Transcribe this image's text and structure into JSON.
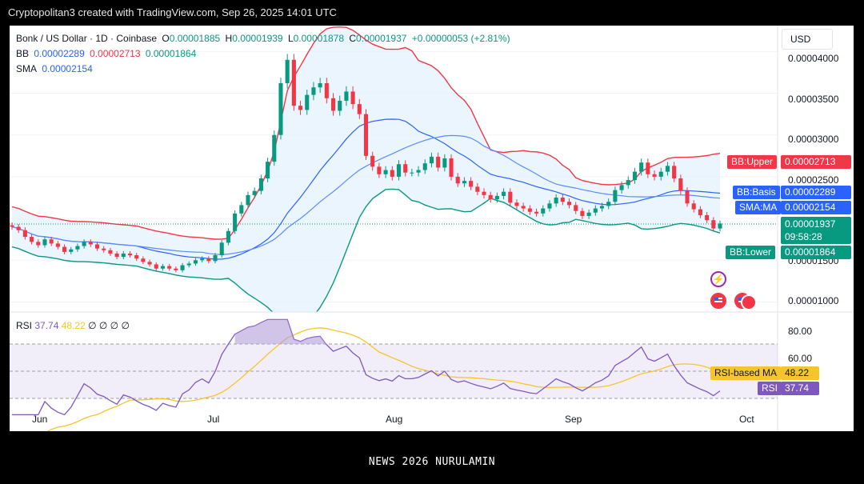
{
  "header": {
    "title": "Cryptopolitan3 created with TradingView.com, Sep 26, 2025 14:01 UTC"
  },
  "legend": {
    "symbol": "Bonk / US Dollar · 1D · Coinbase",
    "o_label": "O",
    "o": "0.00001885",
    "h_label": "H",
    "h": "0.00001939",
    "l_label": "L",
    "l": "0.00001878",
    "c_label": "C",
    "c": "0.00001937",
    "change": "+0.00000053 (+2.81%)",
    "bb_label": "BB",
    "bb_basis": "0.00002289",
    "bb_upper": "0.00002713",
    "bb_lower": "0.00001864",
    "sma_label": "SMA",
    "sma": "0.00002154"
  },
  "currency": "USD",
  "price_axis": {
    "ticks": [
      "0.00004000",
      "0.00003500",
      "0.00003000",
      "0.00002500",
      "0.00001500",
      "0.00001000"
    ]
  },
  "price_tags": {
    "bb_upper_label": "BB:Upper",
    "bb_upper_value": "0.00002713",
    "bb_basis_label": "BB:Basis",
    "bb_basis_value": "0.00002289",
    "sma_label": "SMA:MA",
    "sma_value": "0.00002154",
    "last_value": "0.00001937",
    "countdown": "09:58:28",
    "bb_lower_label": "BB:Lower",
    "bb_lower_value": "0.00001864"
  },
  "rsi": {
    "label": "RSI",
    "value": "37.74",
    "ma_value": "48.22",
    "extra": "∅ ∅ ∅ ∅",
    "ticks": [
      "80.00",
      "60.00"
    ],
    "ma_tag_label": "RSI-based MA",
    "ma_tag_value": "48.22",
    "rsi_tag_label": "RSI",
    "rsi_tag_value": "37.74"
  },
  "time_axis": {
    "labels": [
      "Jun",
      "Jul",
      "Aug",
      "Sep",
      "Oct"
    ]
  },
  "footer": {
    "text": "NEWS 2026 NURULAMIN"
  },
  "colors": {
    "up": "#089981",
    "down": "#f23645",
    "basis": "#2962ff",
    "sma": "#2962ff",
    "rsi": "#7e57c2",
    "rsi_ma": "#f7c52b",
    "band_fill": "#e3f2fd"
  },
  "chart_data": {
    "type": "candlestick",
    "title": "Bonk / US Dollar · 1D · Coinbase",
    "y_axis_range": [
      8.8e-06,
      4.31e-05
    ],
    "x_axis_labels": [
      "Jun",
      "Jul",
      "Aug",
      "Sep",
      "Oct"
    ],
    "close_series": [
      1.9e-05,
      1.86e-05,
      1.78e-05,
      1.72e-05,
      1.68e-05,
      1.75e-05,
      1.7e-05,
      1.66e-05,
      1.6e-05,
      1.63e-05,
      1.67e-05,
      1.72e-05,
      1.69e-05,
      1.64e-05,
      1.62e-05,
      1.58e-05,
      1.54e-05,
      1.58e-05,
      1.56e-05,
      1.52e-05,
      1.48e-05,
      1.45e-05,
      1.4e-05,
      1.43e-05,
      1.4e-05,
      1.38e-05,
      1.44e-05,
      1.46e-05,
      1.5e-05,
      1.52e-05,
      1.49e-05,
      1.56e-05,
      1.71e-05,
      1.85e-05,
      2.06e-05,
      2.16e-05,
      2.28e-05,
      2.33e-05,
      2.48e-05,
      2.68e-05,
      3e-05,
      3.62e-05,
      3.9e-05,
      3.35e-05,
      3.3e-05,
      3.48e-05,
      3.57e-05,
      3.62e-05,
      3.44e-05,
      3.29e-05,
      3.41e-05,
      3.52e-05,
      3.37e-05,
      3.25e-05,
      2.75e-05,
      2.62e-05,
      2.53e-05,
      2.58e-05,
      2.5e-05,
      2.65e-05,
      2.55e-05,
      2.55e-05,
      2.58e-05,
      2.66e-05,
      2.74e-05,
      2.61e-05,
      2.72e-05,
      2.5e-05,
      2.42e-05,
      2.45e-05,
      2.38e-05,
      2.32e-05,
      2.28e-05,
      2.23e-05,
      2.27e-05,
      2.32e-05,
      2.19e-05,
      2.15e-05,
      2.12e-05,
      2.08e-05,
      2.06e-05,
      2.12e-05,
      2.18e-05,
      2.25e-05,
      2.2e-05,
      2.16e-05,
      2.09e-05,
      2.03e-05,
      2.07e-05,
      2.12e-05,
      2.15e-05,
      2.2e-05,
      2.34e-05,
      2.4e-05,
      2.46e-05,
      2.56e-05,
      2.67e-05,
      2.53e-05,
      2.5e-05,
      2.56e-05,
      2.63e-05,
      2.48e-05,
      2.33e-05,
      2.18e-05,
      2.11e-05,
      2.04e-05,
      1.98e-05,
      1.88e-05,
      1.94e-05
    ],
    "bb_upper": "0.00002713",
    "bb_basis": "0.00002289",
    "bb_lower": "0.00001864",
    "sma": "0.00002154",
    "last_close": "0.00001937",
    "rsi": {
      "value": 37.74,
      "ma": 48.22,
      "levels": [
        70,
        50,
        30
      ],
      "axis_ticks": [
        80,
        60
      ]
    }
  }
}
